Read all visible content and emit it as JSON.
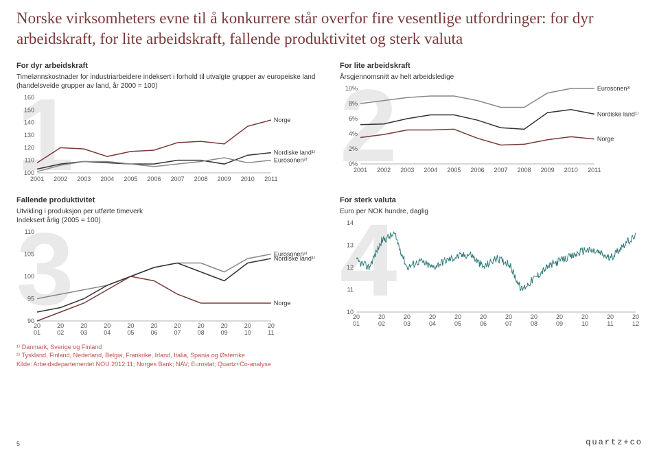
{
  "title": "Norske virksomheters evne til å konkurrere står overfor fire vesentlige utfordringer: for dyr arbeidskraft, for lite arbeidskraft, fallende produktivitet og sterk valuta",
  "panels": {
    "p1": {
      "watermark": "1",
      "header": "For dyr arbeidskraft",
      "sub": "Timelønnskostnader for industriarbeidere indeksert i forhold til utvalgte grupper av europeiske land (handelsveide grupper av land, år 2000 = 100)",
      "type": "line",
      "ylim": [
        100,
        160
      ],
      "ytick_step": 10,
      "years": [
        "2001",
        "2002",
        "2003",
        "2004",
        "2005",
        "2006",
        "2007",
        "2008",
        "2009",
        "2010",
        "2011"
      ],
      "series": [
        {
          "label": "Norge",
          "color": "#7a3a3a",
          "values": [
            108,
            120,
            119,
            113,
            117,
            118,
            124,
            125,
            123,
            137,
            142
          ]
        },
        {
          "label": "Nordiske land¹⁾",
          "color": "#333333",
          "values": [
            103,
            107,
            109,
            108,
            107,
            107,
            110,
            110,
            107,
            114,
            116
          ]
        },
        {
          "label": "Eurosonen²⁾",
          "color": "#888888",
          "values": [
            101,
            106,
            109,
            109,
            107,
            105,
            107,
            109,
            112,
            108,
            110
          ]
        }
      ],
      "label_fontsize": 9,
      "grid_color": "#cccccc"
    },
    "p2": {
      "watermark": "2",
      "header": "For lite arbeidskraft",
      "sub": "Årsgjennomsnitt av helt arbeidsledige",
      "type": "line",
      "ylim": [
        0,
        10
      ],
      "ytick_step": 2,
      "y_suffix": "%",
      "years": [
        "2001",
        "2002",
        "2003",
        "2004",
        "2005",
        "2006",
        "2007",
        "2008",
        "2009",
        "2010",
        "2011"
      ],
      "series": [
        {
          "label": "Eurosonen²⁾",
          "color": "#888888",
          "values": [
            8.0,
            8.4,
            8.8,
            9.0,
            9.0,
            8.4,
            7.5,
            7.5,
            9.4,
            10.0,
            10.0
          ]
        },
        {
          "label": "Nordiske land¹⁾",
          "color": "#333333",
          "values": [
            5.2,
            5.3,
            6.0,
            6.5,
            6.5,
            5.8,
            4.8,
            4.6,
            6.8,
            7.2,
            6.6
          ]
        },
        {
          "label": "Norge",
          "color": "#7a3a3a",
          "values": [
            3.5,
            3.9,
            4.5,
            4.5,
            4.6,
            3.4,
            2.5,
            2.6,
            3.2,
            3.6,
            3.3
          ]
        }
      ],
      "label_fontsize": 9
    },
    "p3": {
      "watermark": "3",
      "header": "Fallende produktivitet",
      "sub": "Utvikling i produksjon per utførte timeverk\nIndeksert årlig (2005 = 100)",
      "type": "line",
      "ylim": [
        90,
        110
      ],
      "ytick_step": 5,
      "years": [
        "2001",
        "2002",
        "2003",
        "2004",
        "2005",
        "2006",
        "2007",
        "2008",
        "2009",
        "2010",
        "2011"
      ],
      "xlabel_format": "split",
      "series": [
        {
          "label": "Eurosonen²⁾",
          "color": "#888888",
          "values": [
            95,
            96,
            97,
            98,
            100,
            102,
            103,
            103,
            101,
            104,
            105
          ]
        },
        {
          "label": "Nordiske land¹⁾",
          "color": "#333333",
          "values": [
            92,
            93,
            95,
            98,
            100,
            102,
            103,
            101,
            99,
            103,
            104
          ]
        },
        {
          "label": "Norge",
          "color": "#7a3a3a",
          "values": [
            90,
            92,
            94,
            97,
            100,
            99,
            96,
            94,
            94,
            94,
            94
          ]
        }
      ],
      "label_fontsize": 9
    },
    "p4": {
      "watermark": "4",
      "header": "For sterk valuta",
      "sub": "Euro per NOK hundre, daglig",
      "type": "line-dense",
      "ylim": [
        10,
        14
      ],
      "ytick_step": 1,
      "years": [
        "2001",
        "2002",
        "2003",
        "2004",
        "2005",
        "2006",
        "2007",
        "2008",
        "2009",
        "2010",
        "2011",
        "2012"
      ],
      "xlabel_format": "split",
      "series": [
        {
          "label": "",
          "color": "#327a7a",
          "values": [
            12.3,
            12.0,
            13.2,
            13.5,
            12.0,
            12.3,
            12.0,
            12.3,
            12.5,
            12.6,
            12.0,
            12.4,
            12.2,
            11.0,
            11.5,
            12.0,
            12.3,
            12.5,
            12.8,
            12.7,
            12.4,
            13.0,
            13.4
          ]
        }
      ],
      "noise_amplitude": 0.35,
      "label_fontsize": 9
    }
  },
  "footnotes": {
    "f1": "¹⁾ Danmark, Sverige og Finland",
    "f2": "²⁾ Tyskland, Finland, Nederland, Belgia, Frankrike, Irland, Italia, Spania og Østerrike",
    "src": "Kilde:  Arbeidsdepartementet NOU 2012:11; Norges Bank; NAV; Eurostat; Quartz+Co-analyse"
  },
  "page_num": "5",
  "brand": "quartz+co"
}
